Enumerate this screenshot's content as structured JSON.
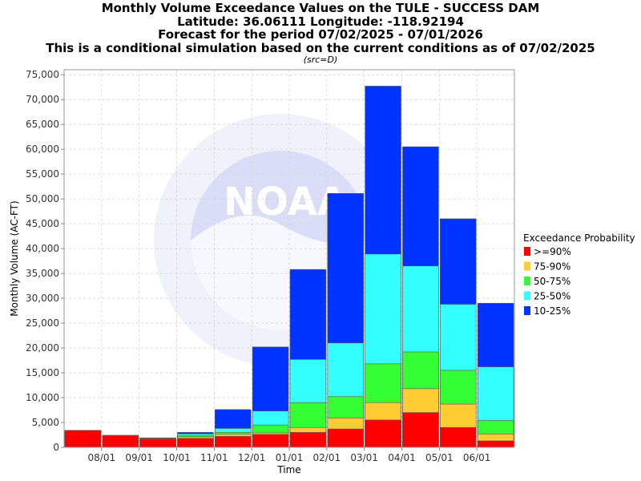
{
  "chart_data": {
    "type": "bar",
    "title_lines": [
      "Monthly Volume Exceedance Values on the TULE - SUCCESS DAM",
      "Latitude: 36.06111 Longitude: -118.92194",
      "Forecast for the period 07/02/2025 - 07/01/2026",
      "This is a conditional simulation based on the current conditions as of 07/02/2025"
    ],
    "subtitle": "(src=D)",
    "xlabel": "Time",
    "ylabel": "Monthly Volume (AC-FT)",
    "ylim": [
      0,
      76000
    ],
    "yticks": [
      0,
      5000,
      10000,
      15000,
      20000,
      25000,
      30000,
      35000,
      40000,
      45000,
      50000,
      55000,
      60000,
      65000,
      70000,
      75000
    ],
    "ytick_labels": [
      "0",
      "5,000",
      "10,000",
      "15,000",
      "20,000",
      "25,000",
      "30,000",
      "35,000",
      "40,000",
      "45,000",
      "50,000",
      "55,000",
      "60,000",
      "65,000",
      "70,000",
      "75,000"
    ],
    "categories": [
      "07/2025",
      "08/2025",
      "09/2025",
      "10/2025",
      "11/2025",
      "12/2025",
      "01/2026",
      "02/2026",
      "03/2026",
      "04/2026",
      "05/2026",
      "06/2026"
    ],
    "xtick_labels": [
      "08/01",
      "09/01",
      "10/01",
      "11/01",
      "12/01",
      "01/01",
      "02/01",
      "03/01",
      "04/01",
      "05/01",
      "06/01"
    ],
    "series": [
      {
        "name": "10-25%",
        "color": "#0033ff",
        "values": [
          3400,
          2400,
          1900,
          3000,
          7600,
          20200,
          35800,
          51100,
          72700,
          60500,
          46000,
          29000
        ]
      },
      {
        "name": "25-50%",
        "color": "#33ffff",
        "values": [
          3400,
          2400,
          1900,
          2700,
          3800,
          7300,
          17700,
          21000,
          38900,
          36500,
          28800,
          16200
        ]
      },
      {
        "name": "50-75%",
        "color": "#33ff33",
        "values": [
          3400,
          2400,
          1800,
          2300,
          3000,
          4500,
          9000,
          10200,
          16800,
          19200,
          15500,
          5400
        ]
      },
      {
        "name": "75-90%",
        "color": "#ffcc33",
        "values": [
          3400,
          2400,
          1800,
          2100,
          2600,
          2900,
          4000,
          5900,
          9000,
          11800,
          8700,
          2700
        ]
      },
      {
        "name": ">=90%",
        "color": "#ff0000",
        "values": [
          3400,
          2300,
          1700,
          1800,
          2200,
          2600,
          3000,
          3700,
          5500,
          7000,
          4000,
          1300
        ]
      }
    ],
    "legend": {
      "title": "Exceedance Probability",
      "placement": "right",
      "order": [
        ">=90%",
        "75-90%",
        "50-75%",
        "25-50%",
        "10-25%"
      ]
    },
    "grid": true,
    "watermark": "NOAA"
  }
}
